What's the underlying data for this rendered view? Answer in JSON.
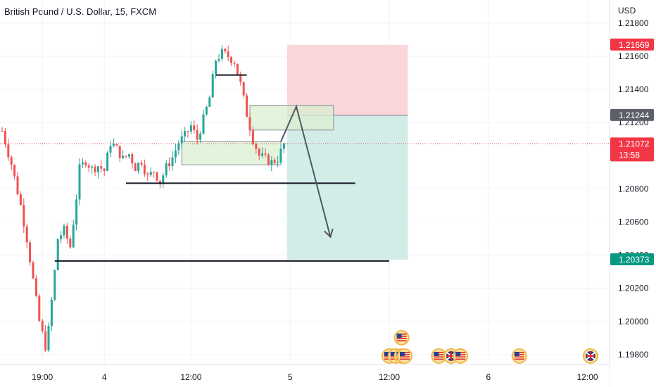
{
  "colors": {
    "up": "#26a69a",
    "down": "#ef5350",
    "stop_zone": "#fbd6d9",
    "target_zone": "#d2ede8",
    "entry_line": "#787b86",
    "last_price": "#f23645",
    "target_tag": "#089981",
    "entry_tag": "#5d606b",
    "stop_tag": "#f23645",
    "box_fill": "#d9efd0",
    "arrow": "#525666"
  },
  "chart_data": {
    "type": "candlestick",
    "title": "British Pound / U.S. Dollar, 15, FXCM",
    "currency": "USD",
    "y_ticks": [
      "1.21800",
      "1.21600",
      "1.21400",
      "1.21200",
      "1.20800",
      "1.20600",
      "1.20400",
      "1.20200",
      "1.20000",
      "1.19800"
    ],
    "y_tick_values": [
      1.218,
      1.216,
      1.214,
      1.212,
      1.208,
      1.206,
      1.204,
      1.202,
      1.2,
      1.198
    ],
    "ylim": [
      1.1974,
      1.2194
    ],
    "x_ticks": [
      "19:00",
      "4",
      "12:00",
      "5",
      "12:00",
      "6",
      "12:00"
    ],
    "x_tick_bars": [
      13,
      33,
      61,
      93,
      125,
      157,
      189
    ],
    "bar_count": 197,
    "price_tags": {
      "stop": "1.21669",
      "entry": "1.21244",
      "last": "1.21072",
      "countdown": "13:58",
      "target": "1.20373"
    },
    "levels": {
      "stop": 1.21669,
      "entry": 1.21244,
      "last": 1.21072,
      "target": 1.20373
    },
    "position": {
      "start_bar": 92,
      "end_bar": 131
    },
    "close_path": [
      [
        0,
        1.2115
      ],
      [
        3,
        1.2095
      ],
      [
        6,
        1.207
      ],
      [
        8,
        1.205
      ],
      [
        10,
        1.2025
      ],
      [
        12,
        1.2
      ],
      [
        14,
        1.1985
      ],
      [
        15,
        1.1995
      ],
      [
        17,
        1.203
      ],
      [
        18,
        1.205
      ],
      [
        20,
        1.2055
      ],
      [
        22,
        1.2045
      ],
      [
        24,
        1.2075
      ],
      [
        25,
        1.2092
      ],
      [
        27,
        1.2097
      ],
      [
        29,
        1.2092
      ],
      [
        31,
        1.2094
      ],
      [
        33,
        1.2091
      ],
      [
        35,
        1.2108
      ],
      [
        37,
        1.2104
      ],
      [
        39,
        1.2098
      ],
      [
        41,
        1.2101
      ],
      [
        43,
        1.2093
      ],
      [
        45,
        1.2097
      ],
      [
        47,
        1.2087
      ],
      [
        49,
        1.2091
      ],
      [
        51,
        1.2084
      ],
      [
        53,
        1.2093
      ],
      [
        55,
        1.2099
      ],
      [
        57,
        1.2108
      ],
      [
        59,
        1.2112
      ],
      [
        61,
        1.2118
      ],
      [
        63,
        1.211
      ],
      [
        65,
        1.2122
      ],
      [
        67,
        1.2135
      ],
      [
        69,
        1.2158
      ],
      [
        71,
        1.2162
      ],
      [
        73,
        1.216
      ],
      [
        75,
        1.2157
      ],
      [
        77,
        1.2143
      ],
      [
        79,
        1.2125
      ],
      [
        81,
        1.211
      ],
      [
        83,
        1.21
      ],
      [
        85,
        1.2098
      ],
      [
        87,
        1.2096
      ],
      [
        89,
        1.2098
      ],
      [
        91,
        1.2107
      ]
    ],
    "drawings": {
      "h_lines": [
        {
          "price": 1.21487,
          "from_bar": 69,
          "to_bar": 79
        },
        {
          "price": 1.20834,
          "from_bar": 40,
          "to_bar": 114
        },
        {
          "price": 1.20365,
          "from_bar": 17,
          "to_bar": 125
        }
      ],
      "boxes": [
        {
          "from_bar": 58,
          "to_bar": 90,
          "top": 1.21085,
          "bottom": 1.20945
        },
        {
          "from_bar": 80,
          "to_bar": 107,
          "top": 1.21305,
          "bottom": 1.21155
        }
      ],
      "path": [
        [
          90,
          1.21085
        ],
        [
          95,
          1.21297
        ],
        [
          106,
          1.2051
        ]
      ]
    },
    "events": {
      "row_top_bars": [
        129
      ],
      "row_bars": [
        125,
        127,
        129,
        130,
        141,
        145,
        148,
        167,
        190
      ],
      "flags": [
        "us",
        "us",
        "us",
        "us",
        "us",
        "gb",
        "us",
        "us",
        "gb"
      ]
    }
  }
}
